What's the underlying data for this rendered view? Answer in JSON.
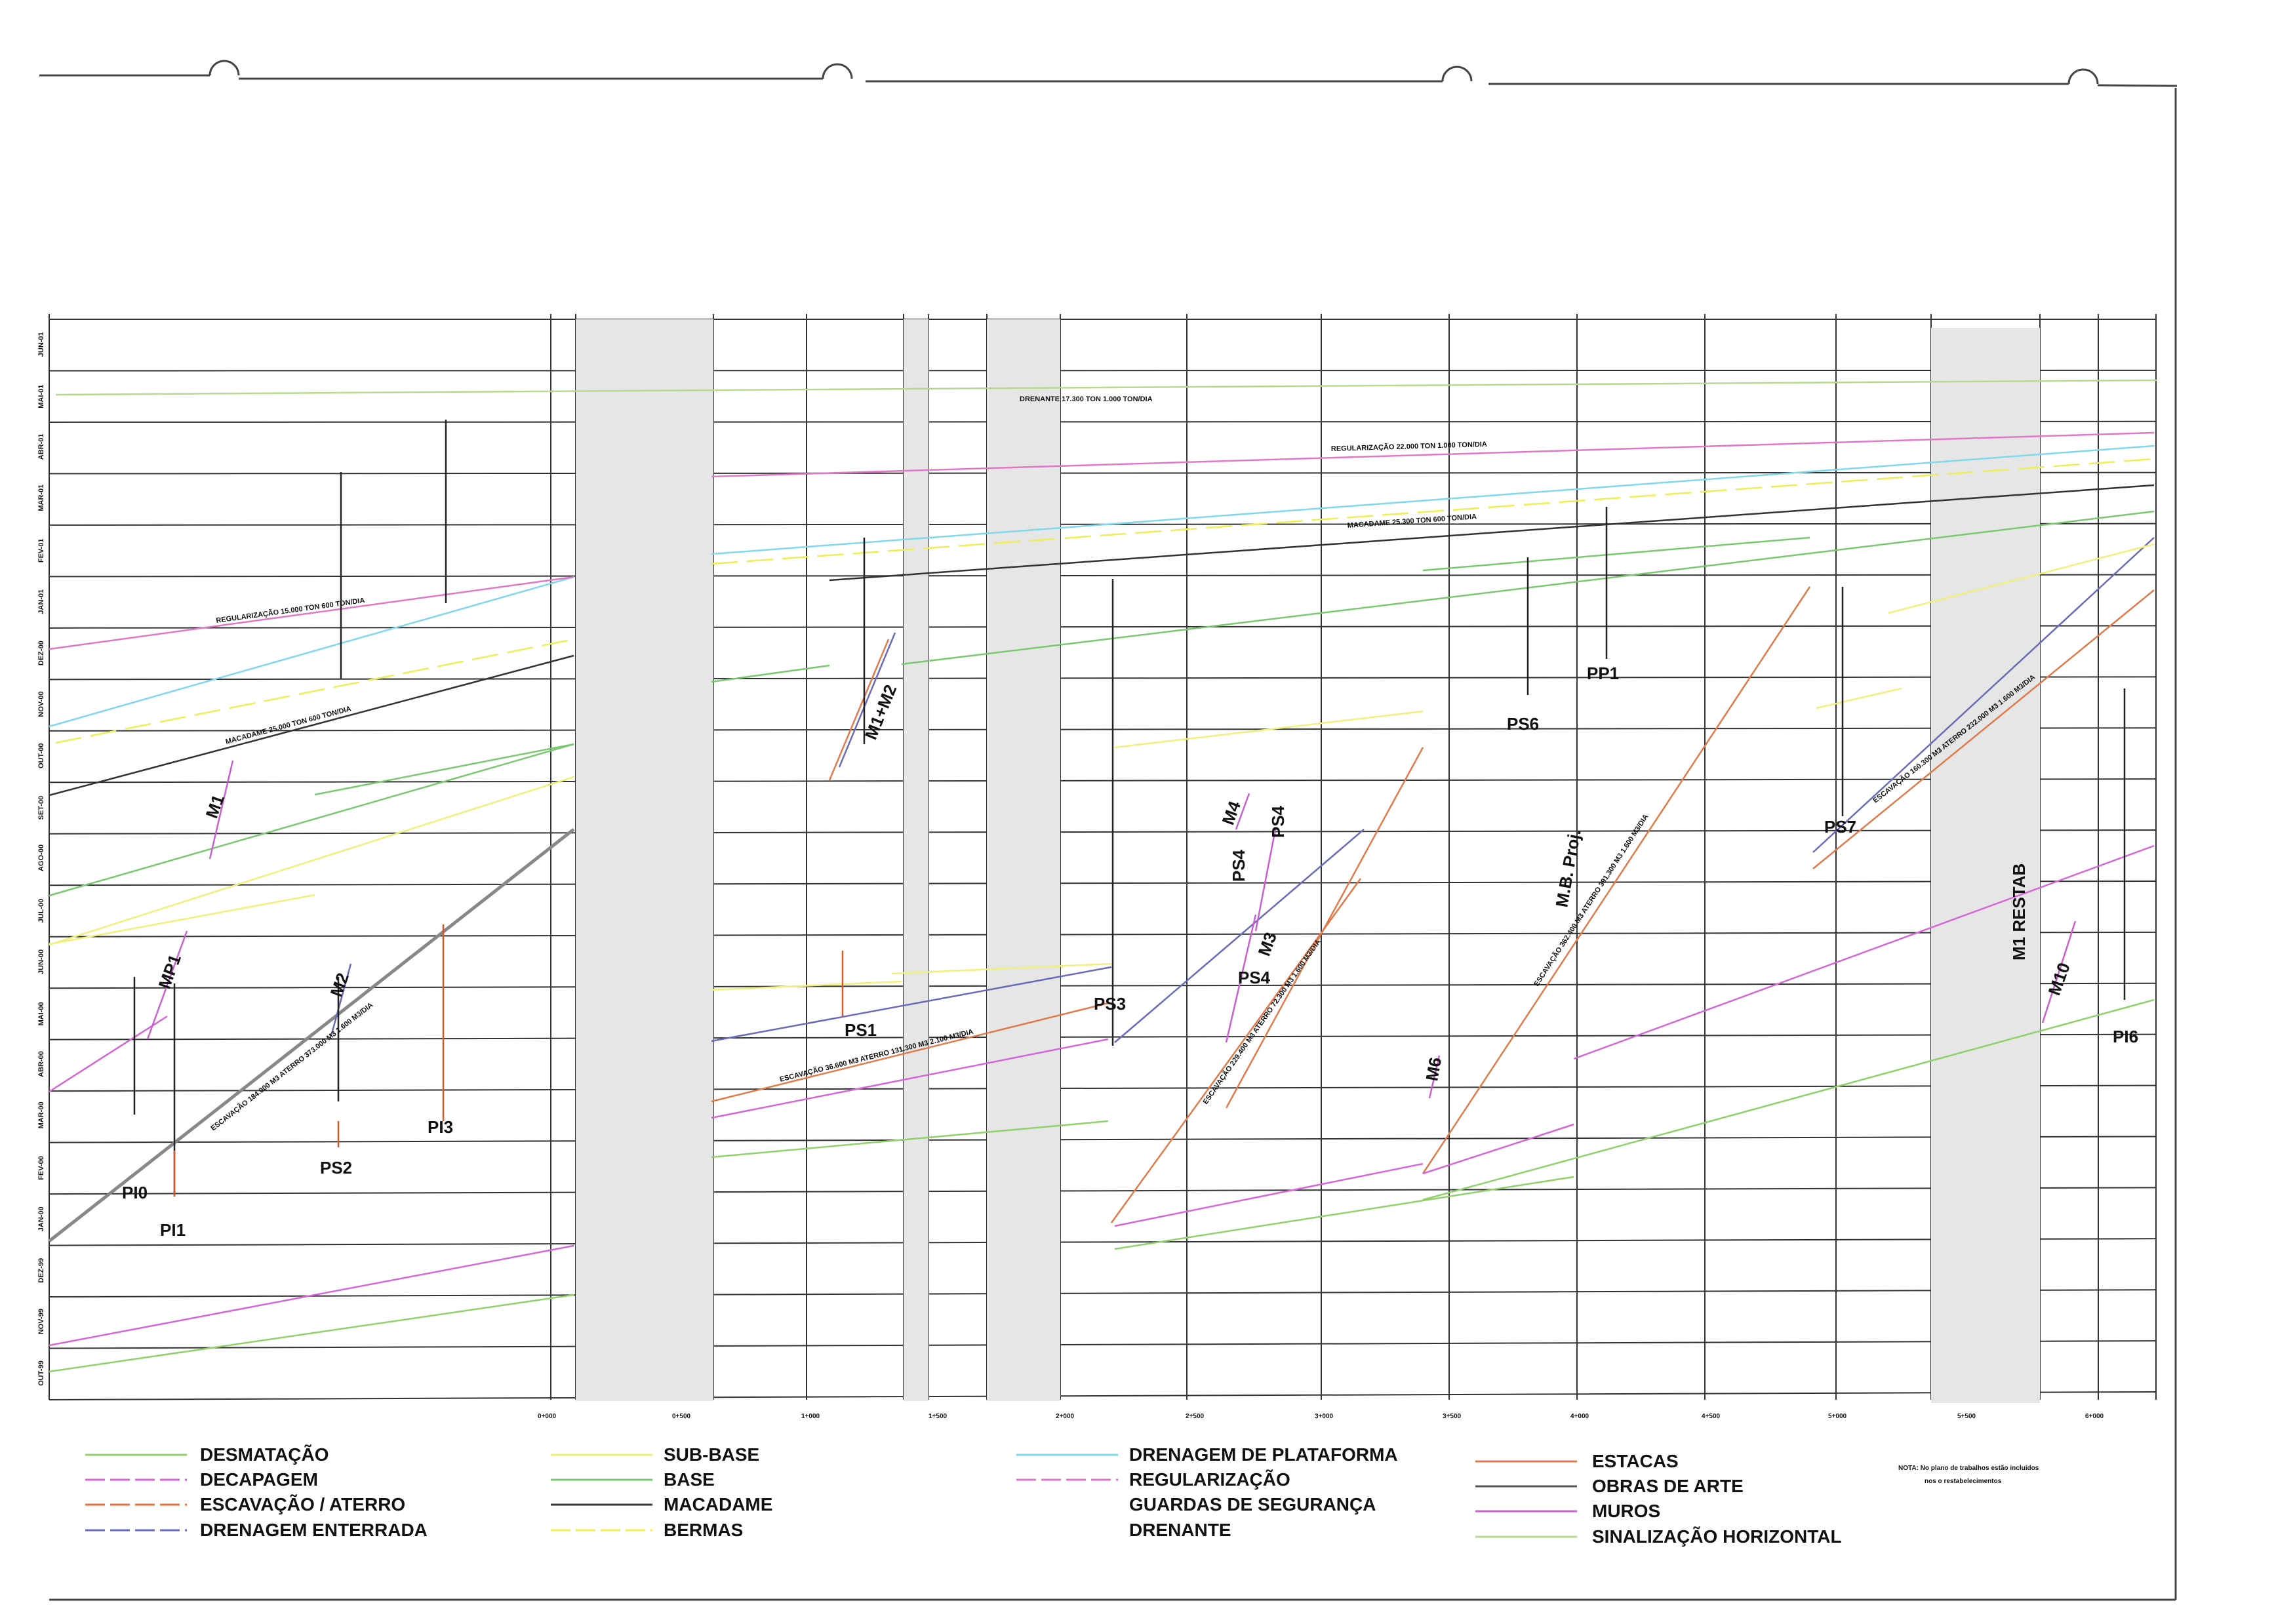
{
  "legend": [
    {
      "key": "desmatacao",
      "label": "DESMATAÇÃO",
      "color": "#8fd16a"
    },
    {
      "key": "decapagem",
      "label": "DECAPAGEM",
      "color": "#d466d8"
    },
    {
      "key": "escavacao",
      "label": "ESCAVAÇÃO / ATERRO",
      "color": "#e0703c"
    },
    {
      "key": "drenagem_enterrada",
      "label": "DRENAGEM ENTERRADA",
      "color": "#6a6ab8"
    },
    {
      "key": "sub_base",
      "label": "SUB-BASE",
      "color": "#f0f07a"
    },
    {
      "key": "base",
      "label": "BASE",
      "color": "#7ac870"
    },
    {
      "key": "macadame",
      "label": "MACADAME",
      "color": "#333333"
    },
    {
      "key": "bermas",
      "label": "BERMAS",
      "color": "#eeee55"
    },
    {
      "key": "drenagem_plataforma",
      "label": "DRENAGEM DE PLATAFORMA",
      "color": "#7fd8ee"
    },
    {
      "key": "regularizacao",
      "label": "REGULARIZAÇÃO",
      "color": "#e078c8"
    },
    {
      "key": "guardas",
      "label": "GUARDAS DE SEGURANÇA",
      "color": ""
    },
    {
      "key": "drenante",
      "label": "DRENANTE",
      "color": ""
    },
    {
      "key": "estacas",
      "label": "ESTACAS",
      "color": "#e07a4a"
    },
    {
      "key": "obras_de_arte",
      "label": "OBRAS DE ARTE",
      "color": "#555555"
    },
    {
      "key": "muros",
      "label": "MUROS",
      "color": "#c860d0"
    },
    {
      "key": "sinalizacao",
      "label": "SINALIZAÇÃO HORIZONTAL",
      "color": "#b8d890"
    }
  ],
  "note": {
    "line1": "NOTA: No plano de trabalhos estão incluídos",
    "line2": "nos o restabelecimentos"
  },
  "axis": {
    "months": [
      "JUN-01",
      "MAI-01",
      "ABR-01",
      "MAR-01",
      "FEV-01",
      "JAN-01",
      "DEZ-00",
      "NOV-00",
      "OUT-00",
      "SET-00",
      "AGO-00",
      "JUL-00",
      "JUN-00",
      "MAI-00",
      "ABR-00",
      "MAR-00",
      "FEV-00",
      "JAN-00",
      "DEZ-99",
      "NOV-99",
      "OUT-99"
    ],
    "chainages": [
      "0+000",
      "0+500",
      "1+000",
      "1+500",
      "2+000",
      "2+500",
      "3+000",
      "3+500",
      "4+000",
      "4+500",
      "5+000",
      "5+500",
      "6+000"
    ]
  },
  "activity_labels": {
    "drenante": "DRENANTE  17.300 TON  1.000 TON/DIA",
    "regularizacao_right": "REGULARIZAÇÃO  22.000 TON  1.000 TON/DIA",
    "macadame_right": "MACADAME  25.300 TON  600 TON/DIA",
    "regularizacao_left": "REGULARIZAÇÃO  15.000 TON  600 TON/DIA",
    "macadame_left": "MACADAME  25.000 TON  600 TON/DIA",
    "escavacao_1": "ESCAVAÇÃO 184.000 M3  ATERRO 373.000 M3  1.600 M3/DIA",
    "escavacao_2": "ESCAVAÇÃO 36.600 M3  ATERRO 131.300 M3  2.100 M3/DIA",
    "escavacao_3": "ESCAVAÇÃO 229.400 M3  ATERRO 72.300 M3  1.600 M3/DIA",
    "escavacao_4": "ESCAVAÇÃO 362.400 M3  ATERRO 391.300 M3  1.600 M3/DIA",
    "escavacao_5": "ESCAVAÇÃO 160.300 M3  ATERRO 232.000 M3  1.600 M3/DIA"
  },
  "markers": {
    "pi0": "PI0",
    "pi1": "PI1",
    "ps2": "PS2",
    "pi3": "PI3",
    "m1": "M1",
    "mp1": "MP1",
    "m2": "M2",
    "m1m2": "M1+M2",
    "ps1": "PS1",
    "ps3": "PS3",
    "m4": "M4",
    "ps4_a": "PS4",
    "ps4_b": "PS4",
    "m3": "M3",
    "ps4_c": "PS4",
    "m6": "M6",
    "ps6": "PS6",
    "pp1": "PP1",
    "mbproj": "M.B. Proj.",
    "ps7": "PS7",
    "m1restab": "M1 RESTAB",
    "m10": "M10",
    "pi6": "PI6"
  }
}
